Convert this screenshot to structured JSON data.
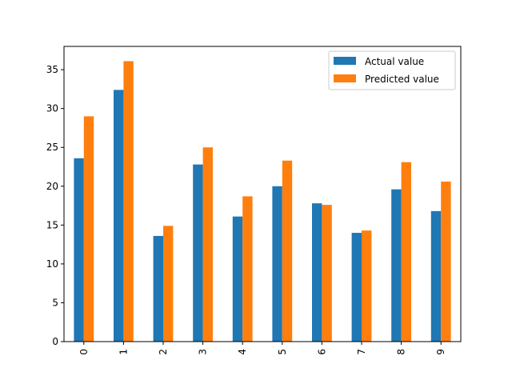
{
  "chart_data": {
    "type": "bar",
    "categories": [
      "0",
      "1",
      "2",
      "3",
      "4",
      "5",
      "6",
      "7",
      "8",
      "9"
    ],
    "series": [
      {
        "name": "Actual value",
        "color": "#1f77b4",
        "values": [
          23.6,
          32.4,
          13.6,
          22.8,
          16.1,
          20.0,
          17.8,
          14.0,
          19.6,
          16.8
        ]
      },
      {
        "name": "Predicted value",
        "color": "#ff7f0e",
        "values": [
          29.0,
          36.1,
          14.9,
          25.0,
          18.7,
          23.3,
          17.6,
          14.3,
          23.1,
          20.6
        ]
      }
    ],
    "ylim": [
      0,
      38
    ],
    "yticks": [
      0,
      5,
      10,
      15,
      20,
      25,
      30,
      35
    ],
    "legend_position": "top-right",
    "grid": false
  }
}
